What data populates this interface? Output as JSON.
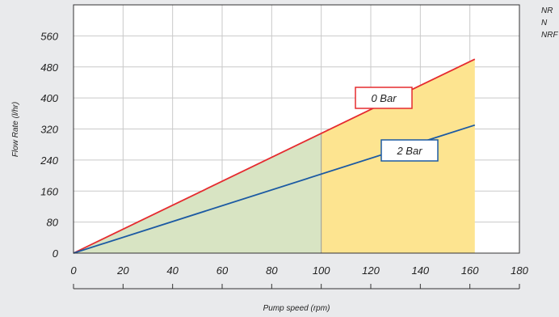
{
  "chart_data": {
    "type": "line",
    "xlabel": "Pump speed (rpm)",
    "ylabel": "Flow Rate (l/hr)",
    "xlim": [
      0,
      180
    ],
    "ylim": [
      0,
      640
    ],
    "x_ticks": [
      0,
      20,
      40,
      60,
      80,
      100,
      120,
      140,
      160,
      180
    ],
    "y_ticks": [
      0,
      80,
      160,
      240,
      320,
      400,
      480,
      560
    ],
    "grid": true,
    "series": [
      {
        "name": "0 Bar",
        "color": "#e52b2f",
        "x": [
          0,
          162
        ],
        "y": [
          0,
          500
        ]
      },
      {
        "name": "2 Bar",
        "color": "#1c5aa3",
        "x": [
          0,
          162
        ],
        "y": [
          0,
          330
        ]
      }
    ],
    "shaded_regions": [
      {
        "x": [
          0,
          100
        ],
        "color": "#d8e4c3"
      },
      {
        "x": [
          100,
          162
        ],
        "color": "#fde490"
      }
    ],
    "side_labels": [
      "NR",
      "N",
      "NRF"
    ]
  }
}
